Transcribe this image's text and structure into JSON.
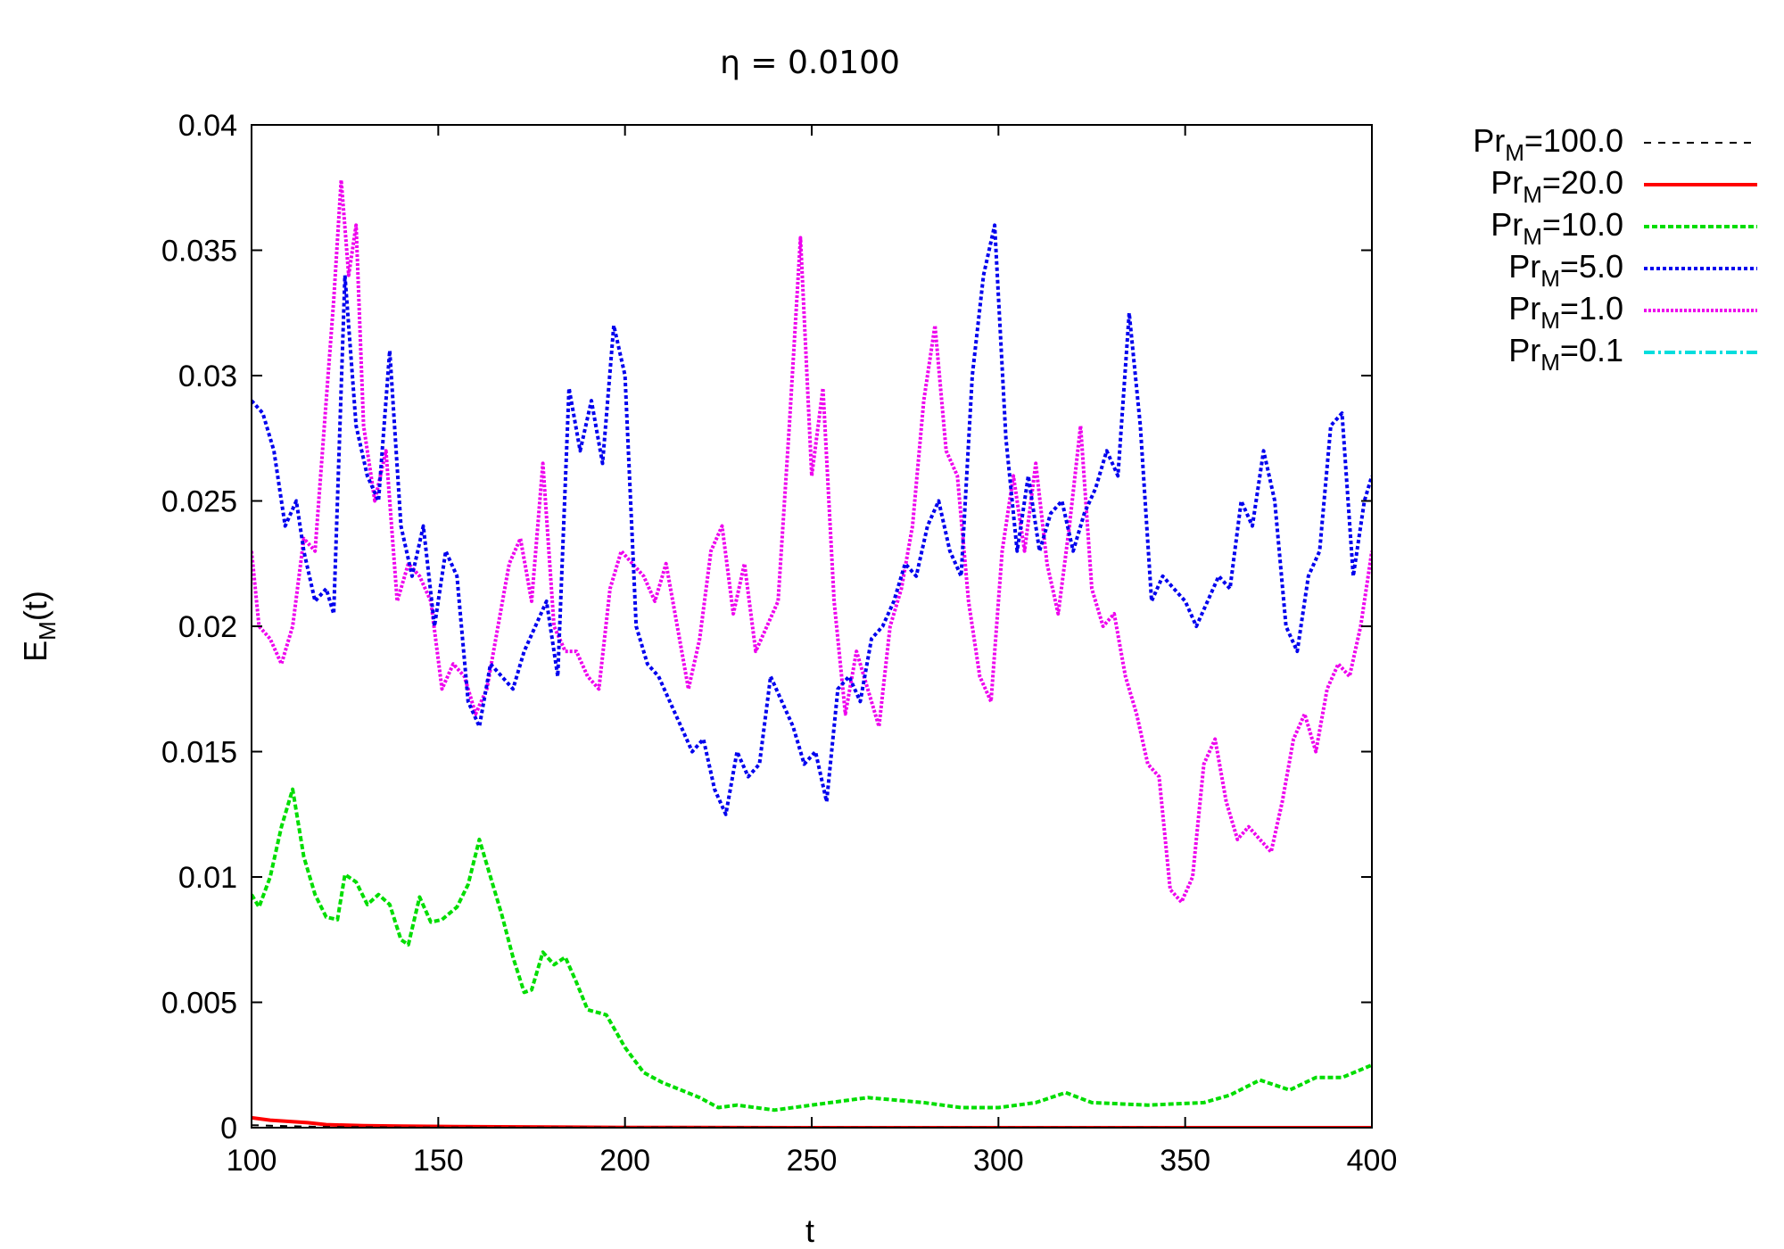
{
  "chart_data": {
    "type": "line",
    "title": "η = 0.0100",
    "xlabel": "t",
    "ylabel": {
      "base": "E",
      "sub": "M",
      "suffix": "(t)"
    },
    "xlim": [
      100,
      400
    ],
    "ylim": [
      0,
      0.04
    ],
    "xticks": [
      100,
      150,
      200,
      250,
      300,
      350,
      400
    ],
    "yticks": [
      0,
      0.005,
      0.01,
      0.015,
      0.02,
      0.025,
      0.03,
      0.035,
      0.04
    ],
    "xtick_labels": [
      "100",
      "150",
      "200",
      "250",
      "300",
      "350",
      "400"
    ],
    "ytick_labels": [
      "0",
      "0.005",
      "0.01",
      "0.015",
      "0.02",
      "0.025",
      "0.03",
      "0.035",
      "0.04"
    ],
    "grid": false,
    "legend_position": "outside-top-right",
    "series": [
      {
        "label_base": "Pr",
        "label_sub": "M",
        "label_value": "=100.0",
        "color": "#000000",
        "style": "dashed",
        "x": [
          100,
          110,
          120,
          140,
          400
        ],
        "y": [
          0.0001,
          6e-05,
          3e-05,
          1e-05,
          0
        ]
      },
      {
        "label_base": "Pr",
        "label_sub": "M",
        "label_value": "=20.0",
        "color": "#ff0000",
        "style": "solid",
        "x": [
          100,
          105,
          110,
          115,
          120,
          130,
          140,
          160,
          200,
          250,
          300,
          400
        ],
        "y": [
          0.0004,
          0.0003,
          0.00025,
          0.0002,
          0.00012,
          8e-05,
          6e-05,
          4e-05,
          1e-05,
          0,
          0,
          0
        ]
      },
      {
        "label_base": "Pr",
        "label_sub": "M",
        "label_value": "=10.0",
        "color": "#00dd00",
        "style": "densely-dashed",
        "x": [
          100,
          102,
          105,
          108,
          111,
          114,
          117,
          120,
          123,
          125,
          128,
          131,
          134,
          137,
          140,
          142,
          145,
          148,
          151,
          155,
          158,
          161,
          164,
          167,
          170,
          173,
          175,
          178,
          181,
          184,
          187,
          190,
          195,
          200,
          205,
          210,
          215,
          220,
          225,
          230,
          240,
          250,
          265,
          280,
          290,
          300,
          310,
          318,
          325,
          340,
          355,
          362,
          370,
          378,
          385,
          392,
          400
        ],
        "y": [
          0.0093,
          0.0088,
          0.01,
          0.012,
          0.0135,
          0.0108,
          0.0093,
          0.0084,
          0.0083,
          0.0101,
          0.0098,
          0.0089,
          0.0093,
          0.0089,
          0.0075,
          0.0073,
          0.0092,
          0.0082,
          0.0083,
          0.0088,
          0.0097,
          0.0115,
          0.01,
          0.0085,
          0.0068,
          0.0054,
          0.0055,
          0.007,
          0.0065,
          0.0068,
          0.0058,
          0.0047,
          0.0045,
          0.0032,
          0.0022,
          0.0018,
          0.0015,
          0.0012,
          0.0008,
          0.0009,
          0.0007,
          0.0009,
          0.0012,
          0.001,
          0.0008,
          0.0008,
          0.001,
          0.0014,
          0.001,
          0.0009,
          0.001,
          0.0013,
          0.0019,
          0.0015,
          0.002,
          0.002,
          0.0025
        ]
      },
      {
        "label_base": "Pr",
        "label_sub": "M",
        "label_value": "=5.0",
        "color": "#0000ee",
        "style": "dotted",
        "x": [
          100,
          103,
          106,
          109,
          112,
          114,
          117,
          120,
          122,
          125,
          128,
          131,
          134,
          137,
          140,
          143,
          146,
          149,
          152,
          155,
          158,
          161,
          164,
          167,
          170,
          173,
          176,
          179,
          182,
          185,
          188,
          191,
          194,
          197,
          200,
          203,
          206,
          209,
          212,
          215,
          218,
          221,
          224,
          227,
          230,
          233,
          236,
          239,
          242,
          245,
          248,
          251,
          254,
          257,
          260,
          263,
          266,
          269,
          272,
          275,
          278,
          281,
          284,
          287,
          290,
          293,
          296,
          299,
          302,
          305,
          308,
          311,
          314,
          317,
          320,
          323,
          326,
          329,
          332,
          335,
          338,
          341,
          344,
          347,
          350,
          353,
          356,
          359,
          362,
          365,
          368,
          371,
          374,
          377,
          380,
          383,
          386,
          389,
          392,
          395,
          398,
          400
        ],
        "y": [
          0.029,
          0.0285,
          0.027,
          0.024,
          0.025,
          0.023,
          0.021,
          0.0215,
          0.0205,
          0.034,
          0.028,
          0.026,
          0.025,
          0.031,
          0.024,
          0.022,
          0.024,
          0.02,
          0.023,
          0.022,
          0.017,
          0.016,
          0.0185,
          0.018,
          0.0175,
          0.019,
          0.02,
          0.021,
          0.018,
          0.0295,
          0.027,
          0.029,
          0.0265,
          0.032,
          0.03,
          0.02,
          0.0185,
          0.018,
          0.017,
          0.016,
          0.015,
          0.0155,
          0.0135,
          0.0125,
          0.015,
          0.014,
          0.0145,
          0.018,
          0.017,
          0.016,
          0.0145,
          0.015,
          0.013,
          0.0175,
          0.018,
          0.017,
          0.0195,
          0.02,
          0.021,
          0.0225,
          0.022,
          0.024,
          0.025,
          0.023,
          0.022,
          0.03,
          0.034,
          0.036,
          0.0275,
          0.023,
          0.026,
          0.023,
          0.0245,
          0.025,
          0.023,
          0.0245,
          0.0255,
          0.027,
          0.026,
          0.0325,
          0.028,
          0.021,
          0.022,
          0.0215,
          0.021,
          0.02,
          0.021,
          0.022,
          0.0215,
          0.025,
          0.024,
          0.027,
          0.025,
          0.02,
          0.019,
          0.022,
          0.023,
          0.028,
          0.0285,
          0.022,
          0.025,
          0.026
        ]
      },
      {
        "label_base": "Pr",
        "label_sub": "M",
        "label_value": "=1.0",
        "color": "#ee00ee",
        "style": "finely-dotted",
        "x": [
          100,
          102,
          105,
          108,
          111,
          114,
          117,
          120,
          122,
          124,
          126,
          128,
          130,
          133,
          136,
          139,
          142,
          145,
          148,
          151,
          154,
          157,
          160,
          163,
          166,
          169,
          172,
          175,
          178,
          181,
          184,
          187,
          190,
          193,
          196,
          199,
          202,
          205,
          208,
          211,
          214,
          217,
          220,
          223,
          226,
          229,
          232,
          235,
          238,
          241,
          244,
          247,
          250,
          253,
          256,
          259,
          262,
          265,
          268,
          271,
          274,
          277,
          280,
          283,
          286,
          289,
          292,
          295,
          298,
          301,
          304,
          307,
          310,
          313,
          316,
          319,
          322,
          325,
          328,
          331,
          334,
          337,
          340,
          343,
          346,
          349,
          352,
          355,
          358,
          361,
          364,
          367,
          370,
          373,
          376,
          379,
          382,
          385,
          388,
          391,
          394,
          397,
          400
        ],
        "y": [
          0.023,
          0.02,
          0.0195,
          0.0185,
          0.02,
          0.0235,
          0.023,
          0.029,
          0.033,
          0.0378,
          0.034,
          0.036,
          0.028,
          0.025,
          0.027,
          0.021,
          0.0225,
          0.022,
          0.021,
          0.0175,
          0.0185,
          0.018,
          0.0165,
          0.0175,
          0.02,
          0.0225,
          0.0235,
          0.021,
          0.0265,
          0.02,
          0.019,
          0.019,
          0.018,
          0.0175,
          0.0215,
          0.023,
          0.0225,
          0.022,
          0.021,
          0.0225,
          0.02,
          0.0175,
          0.0195,
          0.023,
          0.024,
          0.0205,
          0.0225,
          0.019,
          0.02,
          0.021,
          0.028,
          0.0355,
          0.026,
          0.0295,
          0.021,
          0.0165,
          0.019,
          0.0175,
          0.016,
          0.02,
          0.0215,
          0.024,
          0.029,
          0.032,
          0.027,
          0.026,
          0.021,
          0.018,
          0.017,
          0.023,
          0.026,
          0.023,
          0.0265,
          0.0225,
          0.0205,
          0.024,
          0.028,
          0.0215,
          0.02,
          0.0205,
          0.018,
          0.0165,
          0.0145,
          0.014,
          0.0095,
          0.009,
          0.01,
          0.0145,
          0.0155,
          0.013,
          0.0115,
          0.012,
          0.0115,
          0.011,
          0.013,
          0.0155,
          0.0165,
          0.015,
          0.0175,
          0.0185,
          0.018,
          0.02,
          0.023
        ]
      },
      {
        "label_base": "Pr",
        "label_sub": "M",
        "label_value": "=0.1",
        "color": "#00dddd",
        "style": "dash-dot",
        "x": [],
        "y": []
      }
    ]
  }
}
